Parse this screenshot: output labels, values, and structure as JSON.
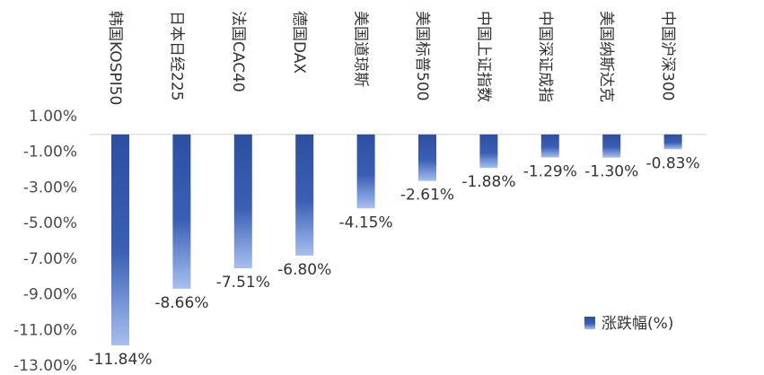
{
  "chart_data": {
    "type": "bar",
    "categories": [
      "韩国KOSPI50",
      "日本日经225",
      "法国CAC40",
      "德国DAX",
      "美国道琼斯",
      "美国标普500",
      "中国上证指数",
      "中国深证成指",
      "美国纳斯达克",
      "中国沪深300"
    ],
    "series": [
      {
        "name": "涨跌幅(%)",
        "values": [
          -11.84,
          -8.66,
          -7.51,
          -6.8,
          -4.15,
          -2.61,
          -1.88,
          -1.29,
          -1.3,
          -0.83
        ],
        "labels": [
          "-11.84%",
          "-8.66%",
          "-7.51%",
          "-6.80%",
          "-4.15%",
          "-2.61%",
          "-1.88%",
          "-1.29%",
          "-1.30%",
          "-0.83%"
        ]
      }
    ],
    "yticks": [
      "1.00%",
      "-1.00%",
      "-3.00%",
      "-5.00%",
      "-7.00%",
      "-9.00%",
      "-11.00%",
      "-13.00%"
    ],
    "ylim": [
      -13,
      1
    ],
    "legend": {
      "position": "bottom-right"
    },
    "colors": {
      "bar_top": "#2e4fa0",
      "bar_bottom": "#a7bff0",
      "axis": "#d0d0d0"
    }
  }
}
